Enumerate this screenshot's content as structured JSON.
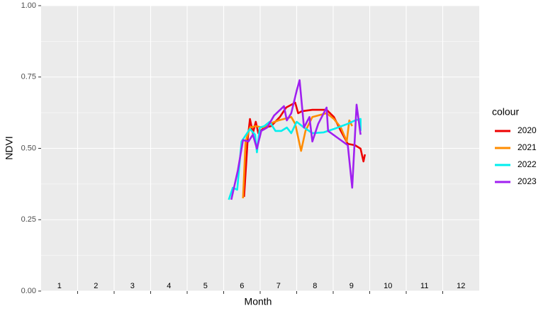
{
  "chart_data": {
    "type": "line",
    "y_label": "NDVI",
    "x_label": "Month",
    "legend_title": "colour",
    "categories": [
      "1",
      "2",
      "3",
      "4",
      "5",
      "6",
      "7",
      "8",
      "9",
      "10",
      "11",
      "12"
    ],
    "xlim": [
      1,
      13
    ],
    "xticks": [
      2,
      3,
      4,
      5,
      6,
      7,
      8,
      9,
      10,
      11,
      12
    ],
    "ylim": [
      0,
      1
    ],
    "yticks": [
      {
        "value": 0,
        "label": "0.00"
      },
      {
        "value": 0.25,
        "label": "0.25"
      },
      {
        "value": 0.5,
        "label": "0.50"
      },
      {
        "value": 0.75,
        "label": "0.75"
      },
      {
        "value": 1,
        "label": "1.00"
      }
    ],
    "grid": true,
    "series": [
      {
        "name": "2020",
        "color": "#ee0000",
        "x": [
          6.56,
          6.66,
          6.72,
          6.8,
          6.88,
          6.95,
          7.11,
          7.3,
          7.54,
          7.71,
          7.96,
          8.04,
          8.14,
          8.43,
          8.82,
          9.02,
          9.21,
          9.4,
          9.6,
          9.75,
          9.83,
          9.87
        ],
        "values": [
          0.33,
          0.536,
          0.603,
          0.553,
          0.593,
          0.553,
          0.573,
          0.578,
          0.61,
          0.643,
          0.66,
          0.623,
          0.63,
          0.635,
          0.635,
          0.61,
          0.561,
          0.516,
          0.511,
          0.499,
          0.454,
          0.479
        ]
      },
      {
        "name": "2021",
        "color": "#ff8c00",
        "x": [
          6.53,
          6.6,
          6.72,
          6.88,
          7.07,
          7.26,
          7.5,
          7.65,
          7.85,
          7.96,
          8.12,
          8.24,
          8.43,
          8.82,
          9.02,
          9.21,
          9.37,
          9.44,
          9.52
        ],
        "values": [
          0.325,
          0.524,
          0.573,
          0.578,
          0.573,
          0.586,
          0.598,
          0.603,
          0.61,
          0.586,
          0.491,
          0.561,
          0.61,
          0.623,
          0.603,
          0.573,
          0.524,
          0.598,
          0.578
        ]
      },
      {
        "name": "2022",
        "color": "#00eeee",
        "x": [
          6.14,
          6.25,
          6.37,
          6.49,
          6.72,
          6.86,
          6.91,
          6.99,
          7.11,
          7.26,
          7.42,
          7.58,
          7.73,
          7.85,
          8.0,
          8.2,
          8.43,
          8.74,
          9.02,
          9.4,
          9.6,
          9.75,
          9.75
        ],
        "values": [
          0.32,
          0.362,
          0.355,
          0.524,
          0.568,
          0.548,
          0.486,
          0.573,
          0.578,
          0.593,
          0.561,
          0.561,
          0.573,
          0.553,
          0.593,
          0.573,
          0.553,
          0.556,
          0.568,
          0.586,
          0.598,
          0.603,
          0.561
        ]
      },
      {
        "name": "2023",
        "color": "#a020f0",
        "x": [
          6.21,
          6.39,
          6.53,
          6.68,
          6.8,
          6.91,
          7.03,
          7.19,
          7.38,
          7.65,
          7.73,
          7.85,
          8.0,
          8.08,
          8.2,
          8.35,
          8.43,
          8.59,
          8.82,
          8.86,
          9.13,
          9.4,
          9.52,
          9.64,
          9.75
        ],
        "values": [
          0.32,
          0.424,
          0.529,
          0.524,
          0.548,
          0.499,
          0.561,
          0.573,
          0.615,
          0.648,
          0.598,
          0.623,
          0.702,
          0.739,
          0.573,
          0.61,
          0.524,
          0.586,
          0.643,
          0.561,
          0.536,
          0.511,
          0.362,
          0.653,
          0.548
        ]
      }
    ]
  }
}
